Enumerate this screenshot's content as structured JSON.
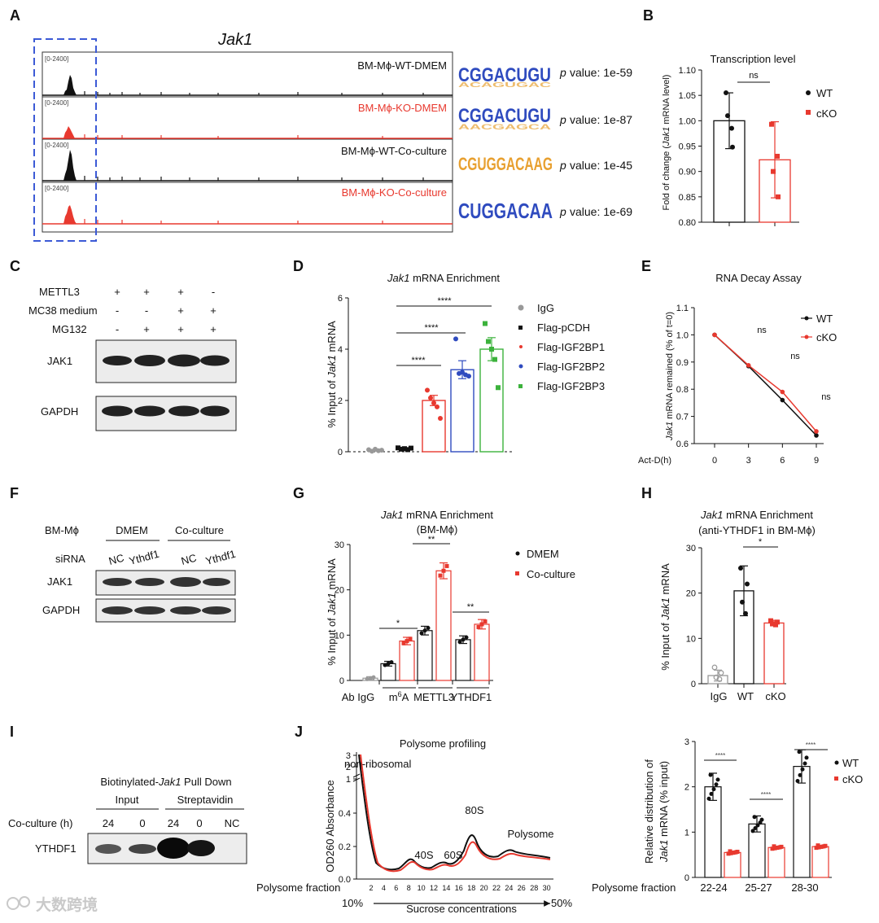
{
  "panel_labels": [
    "A",
    "B",
    "C",
    "D",
    "E",
    "F",
    "G",
    "H",
    "I",
    "J"
  ],
  "colors": {
    "wt": "#111111",
    "ko": "#e8392f",
    "igf1": "#e8392f",
    "igf2": "#2f4bbf",
    "igf3": "#3cb23c",
    "igg": "#999999",
    "box": "#3c5ad6"
  },
  "panelA": {
    "gene": "Jak1",
    "tracks": [
      {
        "label": "BM-Mϕ-WT-DMEM",
        "scale": "[0-2400]",
        "color": "black"
      },
      {
        "label": "BM-Mϕ-KO-DMEM",
        "scale": "[0-2400]",
        "color": "red"
      },
      {
        "label": "BM-Mϕ-WT-Co-culture",
        "scale": "[0-2400]",
        "color": "black"
      },
      {
        "label": "BM-Mϕ-KO-Co-culture",
        "scale": "[0-2400]",
        "color": "red"
      }
    ],
    "motifs": [
      {
        "seq": "CGGACUGU",
        "p_label": "p",
        "p_value": "value: 1e-59"
      },
      {
        "seq": "CGGACUGU",
        "p_label": "p",
        "p_value": "value: 1e-87"
      },
      {
        "seq": "CGUGGACAAG",
        "p_label": "p",
        "p_value": "value: 1e-45"
      },
      {
        "seq": "CUGGACAA",
        "p_label": "p",
        "p_value": "value: 1e-69"
      }
    ]
  },
  "chart_data": [
    {
      "id": "B",
      "type": "bar",
      "title": "Transcription level",
      "ylabel_pre": "Fold of change (",
      "ylabel_italic": "Jak1",
      "ylabel_post": " mRNA level)",
      "ylim": [
        0.8,
        1.1
      ],
      "yticks": [
        "0.80",
        "0.85",
        "0.90",
        "0.95",
        "1.00",
        "1.05",
        "1.10"
      ],
      "series": [
        {
          "name": "WT",
          "value": 1.0,
          "err": 0.055,
          "points": [
            1.055,
            0.985,
            1.01,
            0.948
          ]
        },
        {
          "name": "cKO",
          "value": 0.923,
          "err": 0.075,
          "points": [
            0.993,
            0.93,
            0.9,
            0.85
          ]
        }
      ],
      "annotation": "ns"
    },
    {
      "id": "D",
      "type": "bar",
      "title_italic": "Jak1",
      "title_post": " mRNA Enrichment",
      "ylabel_pre": "% Input of ",
      "ylabel_italic": "Jak1",
      "ylabel_post": " mRNA",
      "ylim": [
        0,
        6
      ],
      "yticks": [
        "0",
        "2",
        "4",
        "6"
      ],
      "series": [
        {
          "name": "IgG",
          "value": 0.05,
          "err": 0.03,
          "points": [
            0.08,
            0.02,
            0.1,
            0.04,
            0.06
          ]
        },
        {
          "name": "Flag-pCDH",
          "value": 0.12,
          "err": 0.04,
          "points": [
            0.15,
            0.1,
            0.12,
            0.08,
            0.14
          ]
        },
        {
          "name": "Flag-IGF2BP1",
          "value": 2.0,
          "err": 0.2,
          "points": [
            2.4,
            2.1,
            1.9,
            1.75,
            1.3
          ]
        },
        {
          "name": "Flag-IGF2BP2",
          "value": 3.2,
          "err": 0.35,
          "points": [
            4.4,
            3.05,
            3.1,
            3.0,
            2.95
          ]
        },
        {
          "name": "Flag-IGF2BP3",
          "value": 4.0,
          "err": 0.45,
          "points": [
            5.0,
            4.3,
            4.0,
            3.6,
            2.5
          ]
        }
      ],
      "significance": [
        "****",
        "****",
        "****"
      ]
    },
    {
      "id": "E",
      "type": "line",
      "title": "RNA Decay Assay",
      "ylabel_italic": "Jak1",
      "ylabel_post": " mRNA remained (% of t=0)",
      "xlabel": "Act-D(h)",
      "x": [
        0,
        3,
        6,
        9
      ],
      "ylim": [
        0.6,
        1.1
      ],
      "yticks": [
        "0.6",
        "0.7",
        "0.8",
        "0.9",
        "1.0",
        "1.1"
      ],
      "xticks": [
        "0",
        "3",
        "6",
        "9"
      ],
      "series": [
        {
          "name": "WT",
          "values": [
            1.0,
            0.885,
            0.76,
            0.63
          ]
        },
        {
          "name": "cKO",
          "values": [
            1.0,
            0.888,
            0.79,
            0.645
          ]
        }
      ],
      "annotations": [
        "ns",
        "ns",
        "ns"
      ]
    },
    {
      "id": "G",
      "type": "bar",
      "title_italic": "Jak1",
      "title_post": " mRNA Enrichment",
      "subtitle": "(BM-Mϕ)",
      "ylabel_pre": "% Input of ",
      "ylabel_italic": "Jak1",
      "ylabel_post": " mRNA",
      "ylim": [
        0,
        30
      ],
      "yticks": [
        "0",
        "10",
        "20",
        "30"
      ],
      "categories": [
        "Ab IgG",
        "m6A",
        "METTL3",
        "YTHDF1"
      ],
      "series": [
        {
          "name": "DMEM",
          "values": [
            0.5,
            3.7,
            11.0,
            9.0
          ]
        },
        {
          "name": "Co-culture",
          "values": [
            null,
            8.7,
            24.2,
            12.4
          ]
        }
      ],
      "significance": [
        "*",
        "**",
        "**"
      ]
    },
    {
      "id": "H",
      "type": "bar",
      "title_italic": "Jak1",
      "title_post": " mRNA Enrichment",
      "subtitle": "(anti-YTHDF1 in BM-Mϕ)",
      "ylabel_pre": "% Input of ",
      "ylabel_italic": "Jak1",
      "ylabel_post": " mRNA",
      "ylim": [
        0,
        30
      ],
      "yticks": [
        "0",
        "10",
        "20",
        "30"
      ],
      "categories": [
        "IgG",
        "WT",
        "cKO"
      ],
      "series": [
        {
          "name": "",
          "values": [
            1.8,
            20.5,
            13.4
          ],
          "err": [
            1.2,
            5.5,
            0.6
          ]
        }
      ],
      "significance": [
        "*"
      ]
    },
    {
      "id": "J-left",
      "type": "line",
      "title": "Polysome profiling",
      "ylabel": "OD260 Absorbance",
      "xlabel": "Sucrose concentrations",
      "x_axis_title": "Polysome fraction",
      "xticks": [
        "2",
        "4",
        "6",
        "8",
        "10",
        "12",
        "14",
        "16",
        "18",
        "20",
        "22",
        "24",
        "26",
        "28",
        "30"
      ],
      "yticks": [
        "0.0",
        "0.2",
        "0.4",
        "1",
        "2",
        "3"
      ],
      "gradient": [
        "10%",
        "50%"
      ],
      "peaks": [
        "non-ribosomal",
        "40S",
        "60S",
        "80S",
        "Polysome"
      ],
      "series": [
        {
          "name": "WT"
        },
        {
          "name": "cKO"
        }
      ]
    },
    {
      "id": "J-right",
      "type": "bar",
      "ylabel_pre": "Relative distribution of",
      "ylabel_italic": "Jak1",
      "ylabel_post": " mRNA (% input)",
      "x_axis_title": "Polysome fraction",
      "categories": [
        "22-24",
        "25-27",
        "28-30"
      ],
      "ylim": [
        0,
        3
      ],
      "yticks": [
        "0",
        "1",
        "2",
        "3"
      ],
      "series": [
        {
          "name": "WT",
          "values": [
            2.0,
            1.18,
            2.45
          ]
        },
        {
          "name": "cKO",
          "values": [
            0.55,
            0.66,
            0.68
          ]
        }
      ],
      "significance": [
        "****",
        "****",
        "****"
      ]
    }
  ],
  "panelC": {
    "rows": [
      {
        "label": "METTL3",
        "signs": [
          "+",
          "+",
          "+",
          "-"
        ]
      },
      {
        "label": "MC38 medium",
        "signs": [
          "-",
          "-",
          "+",
          "+"
        ]
      },
      {
        "label": "MG132",
        "signs": [
          "-",
          "+",
          "+",
          "+"
        ]
      }
    ],
    "blots": [
      "JAK1",
      "GAPDH"
    ]
  },
  "panelF": {
    "cell": "BM-Mϕ",
    "groups": [
      "DMEM",
      "Co-culture"
    ],
    "sirna_label": "siRNA",
    "lanes": [
      "NC",
      "Ythdf1",
      "NC",
      "Ythdf1"
    ],
    "blots": [
      "JAK1",
      "GAPDH"
    ]
  },
  "panelI": {
    "title_pre": "Biotinylated-",
    "title_italic": "Jak1",
    "title_post": " Pull Down",
    "groups": [
      "Input",
      "Streptavidin"
    ],
    "row_label": "Co-culture (h)",
    "lanes": [
      "24",
      "0",
      "24",
      "0",
      "NC"
    ],
    "blot": "YTHDF1"
  },
  "watermark": "大数跨境"
}
